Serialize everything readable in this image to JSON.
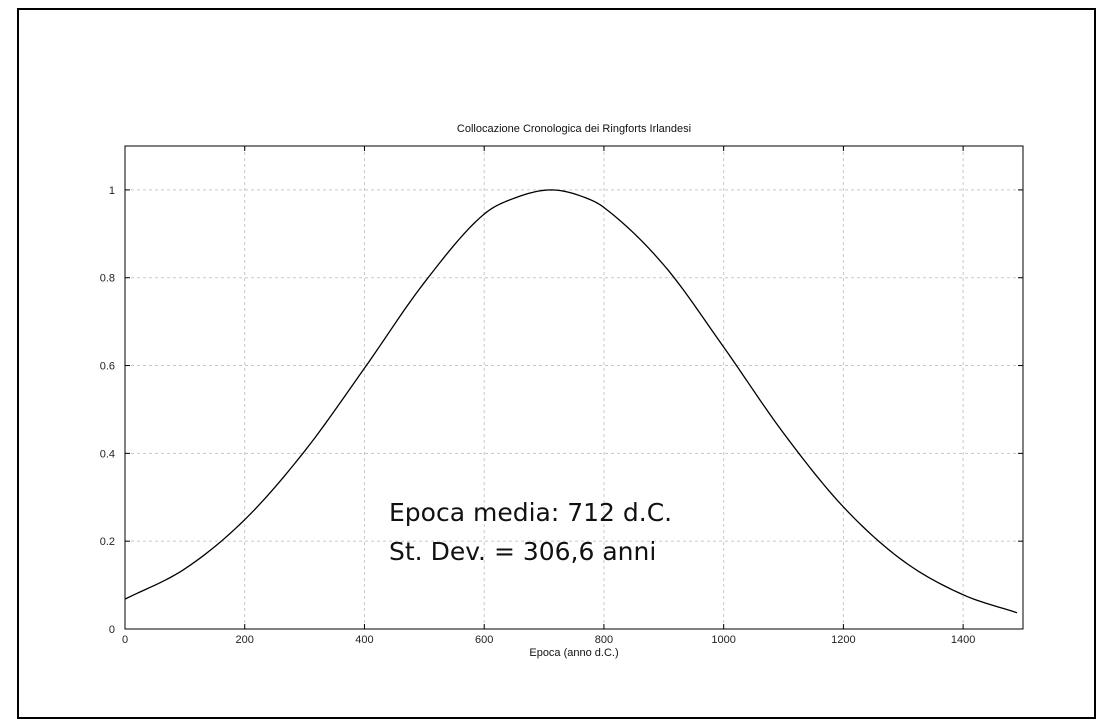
{
  "chart_data": {
    "type": "line",
    "title": "Collocazione Cronologica dei Ringforts Irlandesi",
    "xlabel": "Epoca (anno d.C.)",
    "ylabel": "",
    "xlim": [
      0,
      1500
    ],
    "ylim": [
      0,
      1.1
    ],
    "xticks": [
      0,
      200,
      400,
      600,
      800,
      1000,
      1200,
      1400
    ],
    "yticks": [
      0,
      0.2,
      0.4,
      0.6,
      0.8,
      1
    ],
    "xtick_labels": [
      "0",
      "200",
      "400",
      "600",
      "800",
      "1000",
      "1200",
      "1400"
    ],
    "ytick_labels": [
      "0",
      "0.2",
      "0.4",
      "0.6",
      "0.8",
      "1"
    ],
    "grid": true,
    "series": [
      {
        "color": "#000000",
        "x": [
          0,
          100,
          200,
          300,
          400,
          500,
          600,
          650,
          712,
          775,
          800,
          900,
          1000,
          1100,
          1200,
          1300,
          1400,
          1490
        ],
        "values": [
          0.068,
          0.137,
          0.249,
          0.405,
          0.594,
          0.789,
          0.945,
          0.981,
          1.0,
          0.979,
          0.96,
          0.829,
          0.642,
          0.446,
          0.278,
          0.155,
          0.078,
          0.037
        ]
      }
    ],
    "annotations": [
      "Epoca media: 712 d.C.",
      "St. Dev. = 306,6 anni"
    ]
  }
}
